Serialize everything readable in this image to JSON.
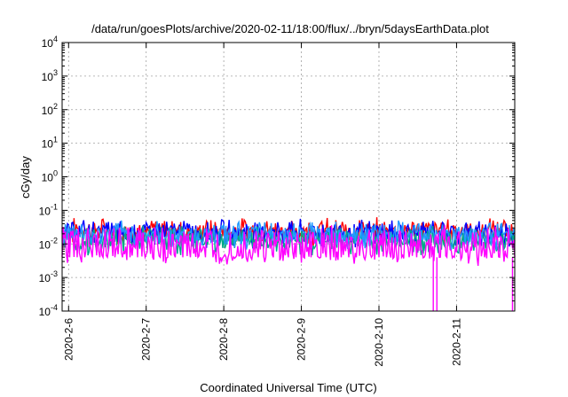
{
  "chart_data": {
    "type": "line",
    "title": "/data/run/goesPlots/archive/2020-02-11/18:00/flux/../bryn/5daysEarthData.plot",
    "xlabel": "Coordinated Universal Time (UTC)",
    "ylabel": "cGy/day",
    "y_scale": "log",
    "ylim": [
      0.0001,
      10000
    ],
    "xlim": [
      "2020-02-05 22:00",
      "2020-02-11 18:00"
    ],
    "x_ticks": [
      "2020-2-6",
      "2020-2-7",
      "2020-2-8",
      "2020-2-9",
      "2020-2-10",
      "2020-2-11"
    ],
    "y_ticks": [
      {
        "value": 0.0001,
        "base": "10",
        "exp": "-4"
      },
      {
        "value": 0.001,
        "base": "10",
        "exp": "-3"
      },
      {
        "value": 0.01,
        "base": "10",
        "exp": "-2"
      },
      {
        "value": 0.1,
        "base": "10",
        "exp": "-1"
      },
      {
        "value": 1,
        "base": "10",
        "exp": "0"
      },
      {
        "value": 10,
        "base": "10",
        "exp": "1"
      },
      {
        "value": 100,
        "base": "10",
        "exp": "2"
      },
      {
        "value": 1000,
        "base": "10",
        "exp": "3"
      },
      {
        "value": 10000,
        "base": "10",
        "exp": "4"
      }
    ],
    "grid": true,
    "legend": "none",
    "series": [
      {
        "color": "#ff0000",
        "level": 0.03,
        "spread_low": 0.012,
        "spread_high": 0.05
      },
      {
        "color": "#0000ff",
        "level": 0.025,
        "spread_low": 0.01,
        "spread_high": 0.045
      },
      {
        "color": "#00aa88",
        "level": 0.012,
        "spread_low": 0.006,
        "spread_high": 0.03
      },
      {
        "color": "#2299ff",
        "level": 0.022,
        "spread_low": 0.009,
        "spread_high": 0.04
      },
      {
        "color": "#ff00ff",
        "level": 0.004,
        "spread_low": 0.003,
        "spread_high": 0.03
      }
    ]
  }
}
